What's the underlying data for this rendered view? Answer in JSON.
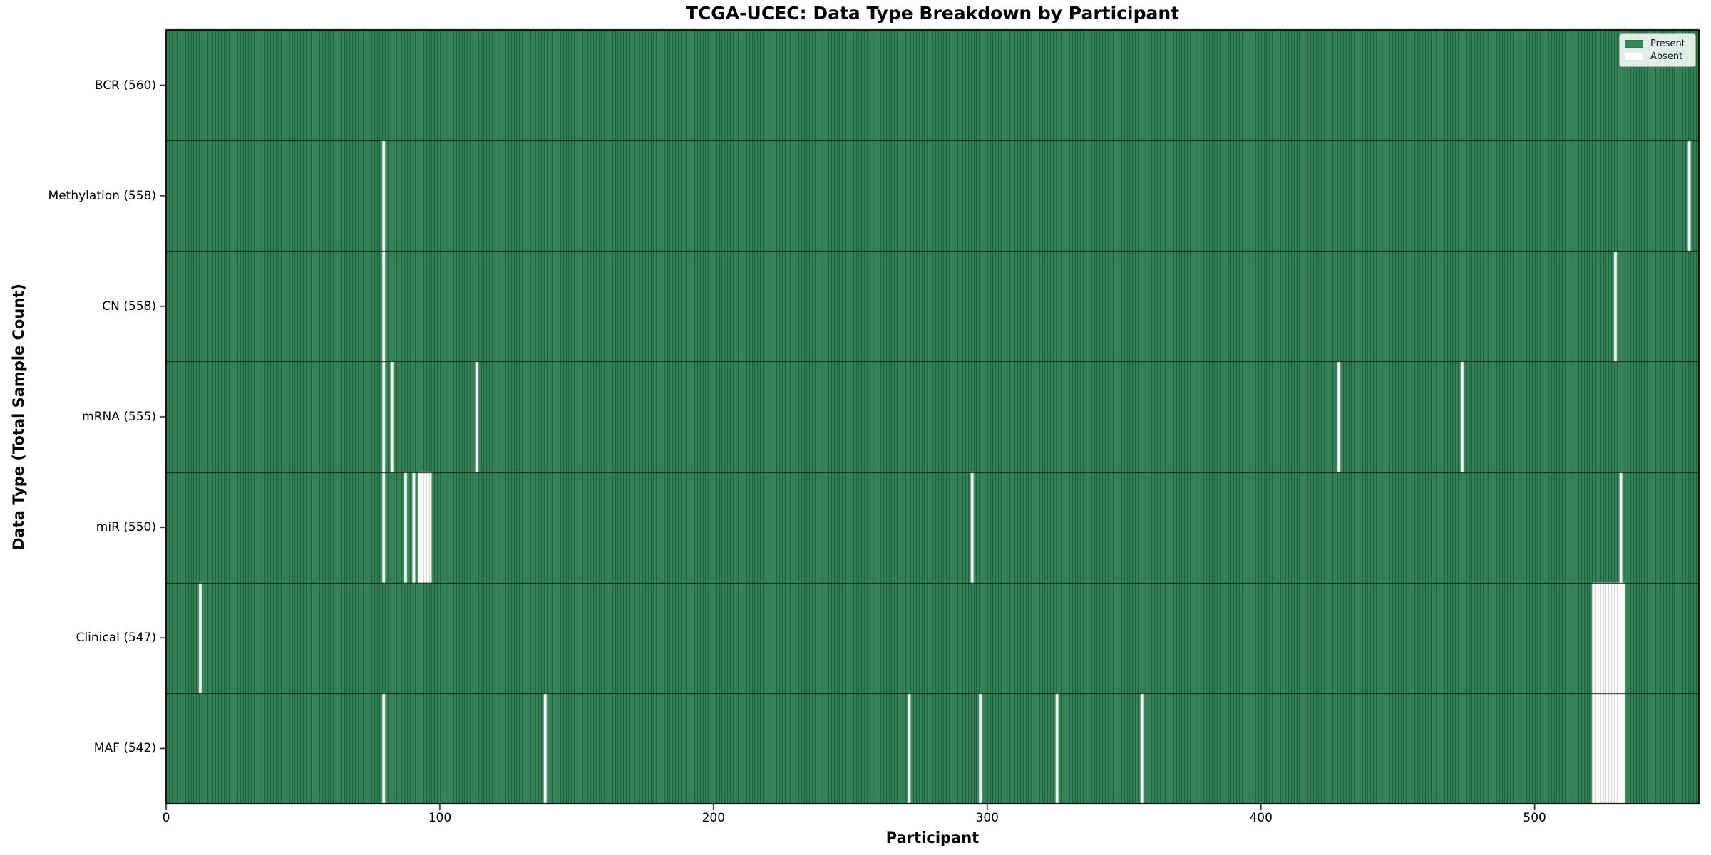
{
  "chart_data": {
    "type": "heatmap",
    "title": "TCGA-UCEC: Data Type Breakdown by Participant",
    "xlabel": "Participant",
    "ylabel": "Data Type (Total Sample Count)",
    "x_ticks": [
      0,
      100,
      200,
      300,
      400,
      500
    ],
    "x_range": [
      0,
      560
    ],
    "n_participants": 560,
    "grid": false,
    "legend_position": "upper right",
    "legend": [
      {
        "label": "Present",
        "color": "#37875a"
      },
      {
        "label": "Absent",
        "color": "#ffffff"
      }
    ],
    "rows": [
      {
        "name": "BCR",
        "label": "BCR (560)",
        "count": 560,
        "absent_participants": []
      },
      {
        "name": "Methylation",
        "label": "Methylation (558)",
        "count": 558,
        "absent_participants": [
          79,
          556
        ]
      },
      {
        "name": "CN",
        "label": "CN (558)",
        "count": 558,
        "absent_participants": [
          79,
          529
        ]
      },
      {
        "name": "mRNA",
        "label": "mRNA (555)",
        "count": 555,
        "absent_participants": [
          79,
          82,
          113,
          428,
          473
        ]
      },
      {
        "name": "miR",
        "label": "miR (550)",
        "count": 550,
        "absent_participants": [
          79,
          87,
          90,
          92,
          93,
          94,
          95,
          96,
          294,
          531
        ]
      },
      {
        "name": "Clinical",
        "label": "Clinical (547)",
        "count": 547,
        "absent_participants": [
          12,
          521,
          522,
          523,
          524,
          525,
          526,
          527,
          528,
          529,
          530,
          531,
          532
        ]
      },
      {
        "name": "MAF",
        "label": "MAF (542)",
        "count": 542,
        "absent_participants": [
          79,
          138,
          271,
          297,
          325,
          356,
          521,
          522,
          523,
          524,
          525,
          526,
          527,
          528,
          529,
          530,
          531,
          532
        ]
      }
    ],
    "colors": {
      "present": "#37875a",
      "present_edge": "#1c5435",
      "absent": "#ffffff",
      "absent_edge": "#cccccc",
      "row_divider": "#1a1a1a",
      "plot_border": "#000000",
      "background": "#ffffff"
    }
  }
}
